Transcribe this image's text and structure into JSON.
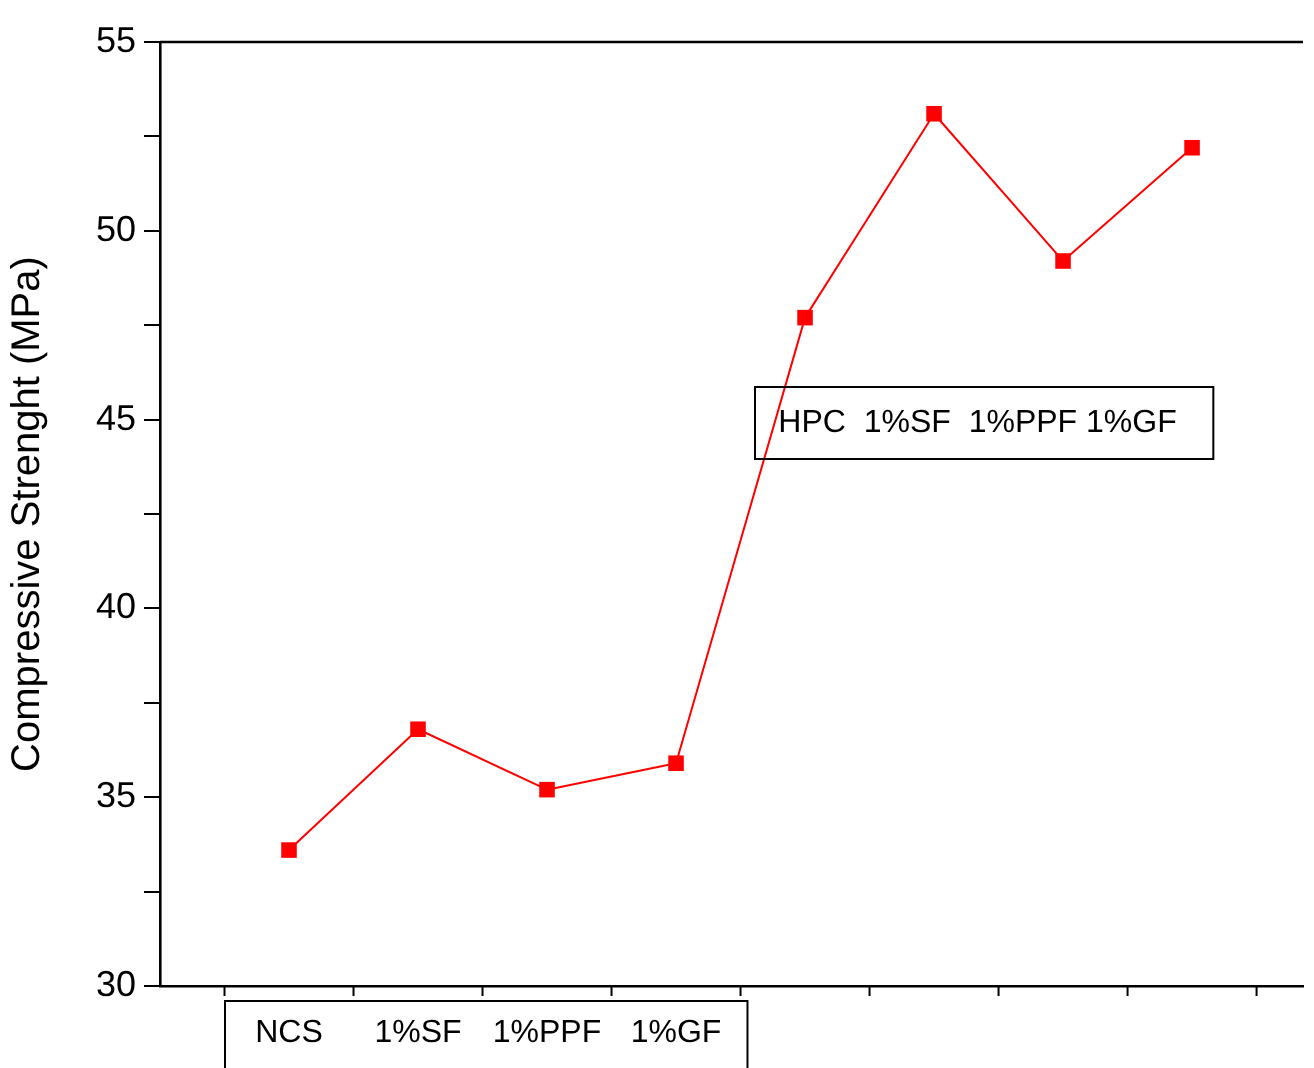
{
  "chart_data": {
    "type": "line",
    "ylabel": "Compressive Strenght (MPa)",
    "categories": [
      "NCS",
      "1%SF",
      "1%PPF",
      "1%GF",
      null,
      null,
      null,
      null
    ],
    "series": [
      {
        "color": "#ff0000",
        "values": [
          33.6,
          36.8,
          35.2,
          35.9,
          47.7,
          53.1,
          49.2,
          52.2
        ]
      }
    ],
    "ylim": [
      30,
      55
    ],
    "yticks": [
      30,
      {
        "value": 32.5,
        "label": null
      },
      35,
      {
        "value": 37.5,
        "label": null
      },
      40,
      {
        "value": 42.5,
        "label": null
      },
      45,
      {
        "value": 47.5,
        "label": null
      },
      50,
      {
        "value": 52.5,
        "label": null
      },
      55
    ],
    "annotations": [
      "HPC  1%SF  1%PPF 1%GF"
    ],
    "marker": "square",
    "line_style": "solid",
    "grid": false,
    "legend": false
  }
}
